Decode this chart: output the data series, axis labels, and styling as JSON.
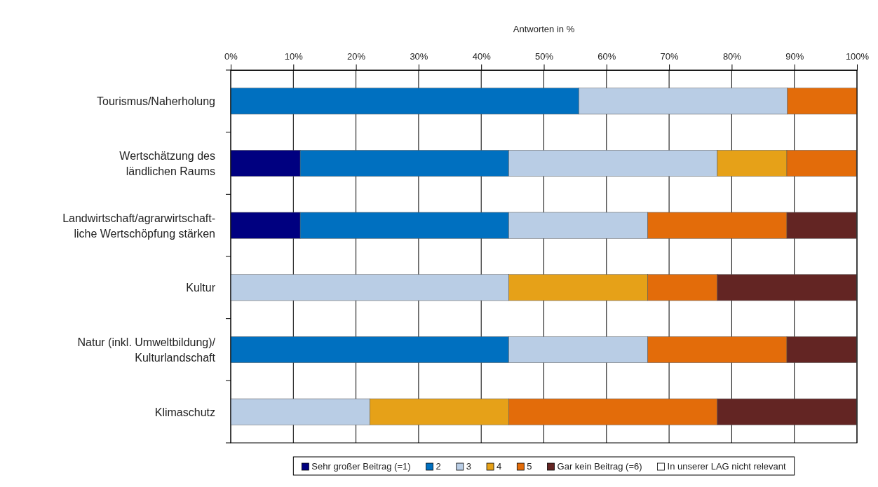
{
  "chart_data": {
    "type": "bar",
    "orientation": "horizontal",
    "stacked": true,
    "xlabel": "Antworten in %",
    "categories": [
      "Tourismus/Naherholung",
      "Wertschätzung des\nländlichen Raums",
      "Landwirtschaft/agrarwirtschaft-\nliche Wertschöpfung stärken",
      "Kultur",
      "Natur (inkl. Umweltbildung)/\nKulturlandschaft",
      "Klimaschutz"
    ],
    "series": [
      {
        "name": "Sehr großer Beitrag (=1)",
        "color": "#000080",
        "values": [
          0,
          11.1,
          11.1,
          0,
          0,
          0
        ]
      },
      {
        "name": "2",
        "color": "#0070c0",
        "values": [
          55.6,
          33.3,
          33.3,
          0,
          44.4,
          0
        ]
      },
      {
        "name": "3",
        "color": "#b9cde5",
        "values": [
          33.3,
          33.3,
          22.2,
          44.4,
          22.2,
          22.2
        ]
      },
      {
        "name": "4",
        "color": "#e6a118",
        "values": [
          0,
          11.1,
          0,
          22.2,
          0,
          22.2
        ]
      },
      {
        "name": "5",
        "color": "#e36c0a",
        "values": [
          11.1,
          11.1,
          22.2,
          11.1,
          22.2,
          33.3
        ]
      },
      {
        "name": "Gar kein Beitrag (=6)",
        "color": "#632523",
        "values": [
          0,
          0,
          11.1,
          22.2,
          11.1,
          22.2
        ]
      },
      {
        "name": "In unserer LAG nicht relevant",
        "color": "#ffffff",
        "values": [
          0,
          0,
          0,
          0,
          0,
          0
        ]
      }
    ],
    "xlim": [
      0,
      100
    ],
    "xticks": [
      {
        "value": 0,
        "label": "0%"
      },
      {
        "value": 10,
        "label": "10%"
      },
      {
        "value": 20,
        "label": "20%"
      },
      {
        "value": 30,
        "label": "30%"
      },
      {
        "value": 40,
        "label": "40%"
      },
      {
        "value": 50,
        "label": "50%"
      },
      {
        "value": 60,
        "label": "60%"
      },
      {
        "value": 70,
        "label": "70%"
      },
      {
        "value": 80,
        "label": "80%"
      },
      {
        "value": 90,
        "label": "90%"
      },
      {
        "value": 100,
        "label": "100%"
      }
    ],
    "grid": "x",
    "legend": "bottom"
  }
}
